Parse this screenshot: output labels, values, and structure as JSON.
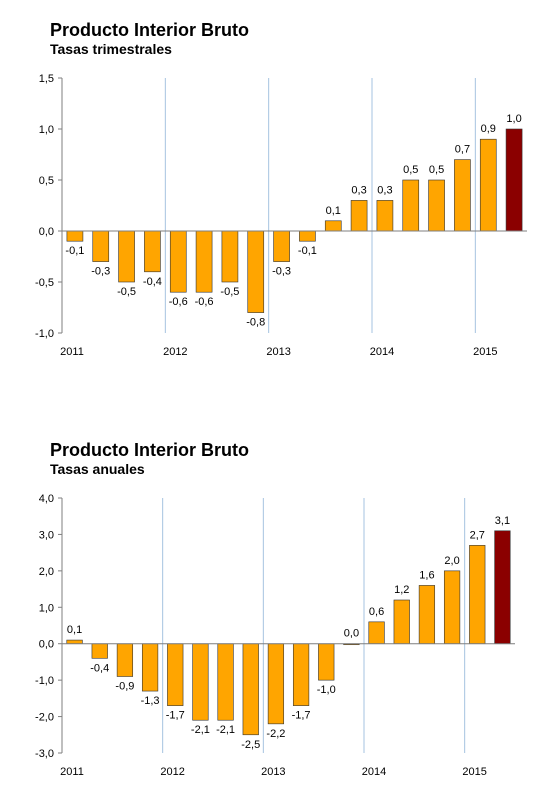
{
  "chart_data": [
    {
      "type": "bar",
      "title": "Producto Interior Bruto",
      "subtitle": "Tasas trimestrales",
      "xlabel": "",
      "ylabel": "",
      "ylim": [
        -1.0,
        1.5
      ],
      "yticks": [
        "-1,0",
        "-0,5",
        "0,0",
        "0,5",
        "1,0",
        "1,5"
      ],
      "ytick_values": [
        -1.0,
        -0.5,
        0.0,
        0.5,
        1.0,
        1.5
      ],
      "year_labels": [
        "2011",
        "2012",
        "2013",
        "2014",
        "2015"
      ],
      "grid": "vertical year separators",
      "values": [
        -0.1,
        -0.3,
        -0.5,
        -0.4,
        -0.6,
        -0.6,
        -0.5,
        -0.8,
        -0.3,
        -0.1,
        0.1,
        0.3,
        0.3,
        0.5,
        0.5,
        0.7,
        0.9,
        1.0
      ],
      "value_labels": [
        "-0,1",
        "-0,3",
        "-0,5",
        "-0,4",
        "-0,6",
        "-0,6",
        "-0,5",
        "-0,8",
        "-0,3",
        "-0,1",
        "0,1",
        "0,3",
        "0,3",
        "0,5",
        "0,5",
        "0,7",
        "0,9",
        "1,0"
      ],
      "colors": {
        "bar": "#FFA500",
        "last_bar": "#8B0000",
        "bar_stroke": "#333333",
        "axis": "#7f7f7f",
        "gridline": "#A6C3E0"
      }
    },
    {
      "type": "bar",
      "title": "Producto Interior Bruto",
      "subtitle": "Tasas anuales",
      "xlabel": "",
      "ylabel": "",
      "ylim": [
        -3.0,
        4.0
      ],
      "yticks": [
        "-3,0",
        "-2,0",
        "-1,0",
        "0,0",
        "1,0",
        "2,0",
        "3,0",
        "4,0"
      ],
      "ytick_values": [
        -3.0,
        -2.0,
        -1.0,
        0.0,
        1.0,
        2.0,
        3.0,
        4.0
      ],
      "year_labels": [
        "2011",
        "2012",
        "2013",
        "2014",
        "2015"
      ],
      "grid": "vertical year separators",
      "values": [
        0.1,
        -0.4,
        -0.9,
        -1.3,
        -1.7,
        -2.1,
        -2.1,
        -2.5,
        -2.2,
        -1.7,
        -1.0,
        0.0,
        0.6,
        1.2,
        1.6,
        2.0,
        2.7,
        3.1
      ],
      "value_labels": [
        "0,1",
        "-0,4",
        "-0,9",
        "-1,3",
        "-1,7",
        "-2,1",
        "-2,1",
        "-2,5",
        "-2,2",
        "-1,7",
        "-1,0",
        "0,0",
        "0,6",
        "1,2",
        "1,6",
        "2,0",
        "2,7",
        "3,1"
      ],
      "colors": {
        "bar": "#FFA500",
        "last_bar": "#8B0000",
        "bar_stroke": "#333333",
        "axis": "#7f7f7f",
        "gridline": "#A6C3E0"
      }
    }
  ]
}
